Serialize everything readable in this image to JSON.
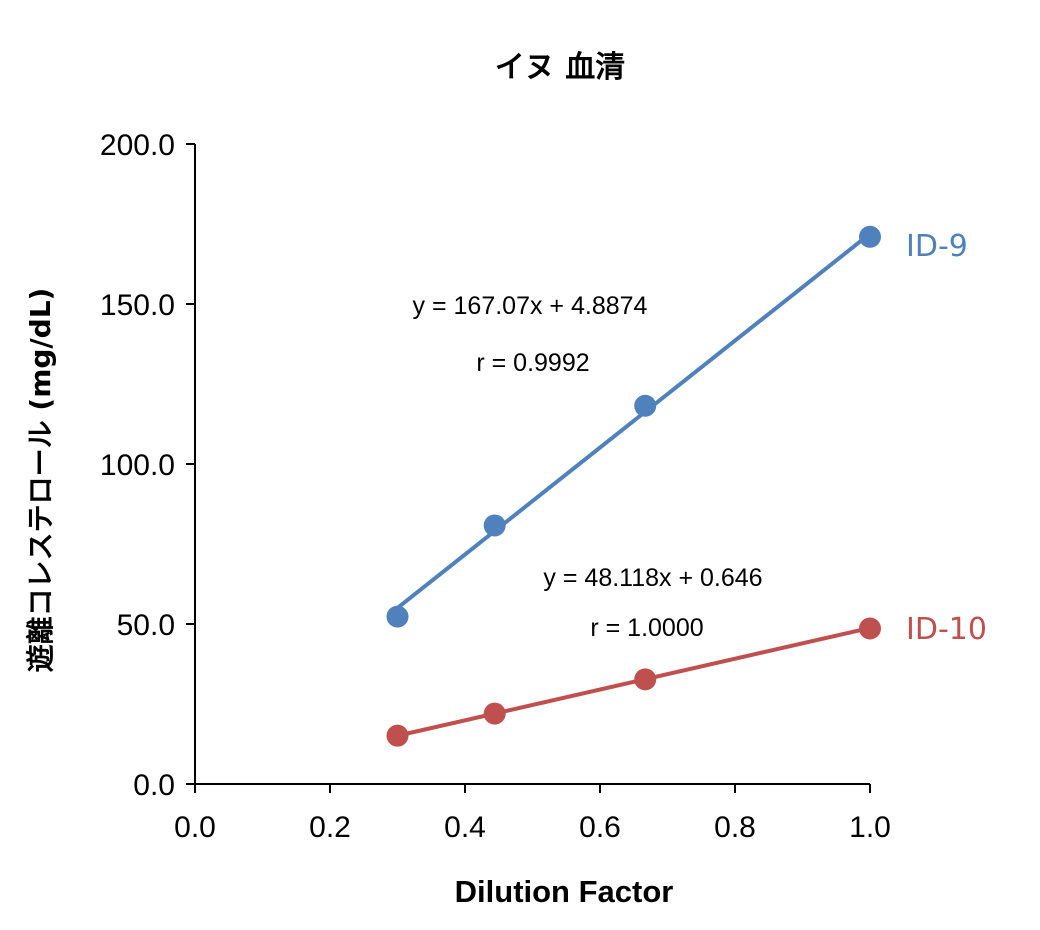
{
  "chart_data": {
    "type": "scatter",
    "title": "イヌ 血清",
    "xlabel": "Dilution Factor",
    "ylabel": "遊離コレステロール (mg/dL)",
    "xlim": [
      0,
      1
    ],
    "ylim": [
      0,
      200
    ],
    "x_ticks": [
      "0.0",
      "0.2",
      "0.4",
      "0.6",
      "0.8",
      "1.0"
    ],
    "y_ticks": [
      "0.0",
      "50.0",
      "100.0",
      "150.0",
      "200.0"
    ],
    "grid": false,
    "legend": "none",
    "series": [
      {
        "name": "ID-9",
        "color": "#4f81bd",
        "x": [
          0.3,
          0.444,
          0.667,
          1.0
        ],
        "y": [
          52.3,
          80.8,
          118.2,
          171.0
        ],
        "fit": {
          "slope": 167.07,
          "intercept": 4.8874
        },
        "equation": "y = 167.07x + 4.8874",
        "r_label": "r = 0.9992"
      },
      {
        "name": "ID-10",
        "color": "#c0504d",
        "x": [
          0.3,
          0.444,
          0.667,
          1.0
        ],
        "y": [
          15.1,
          22.0,
          32.7,
          48.6
        ],
        "fit": {
          "slope": 48.118,
          "intercept": 0.646
        },
        "equation": "y = 48.118x + 0.646",
        "r_label": "r = 1.0000"
      }
    ]
  }
}
